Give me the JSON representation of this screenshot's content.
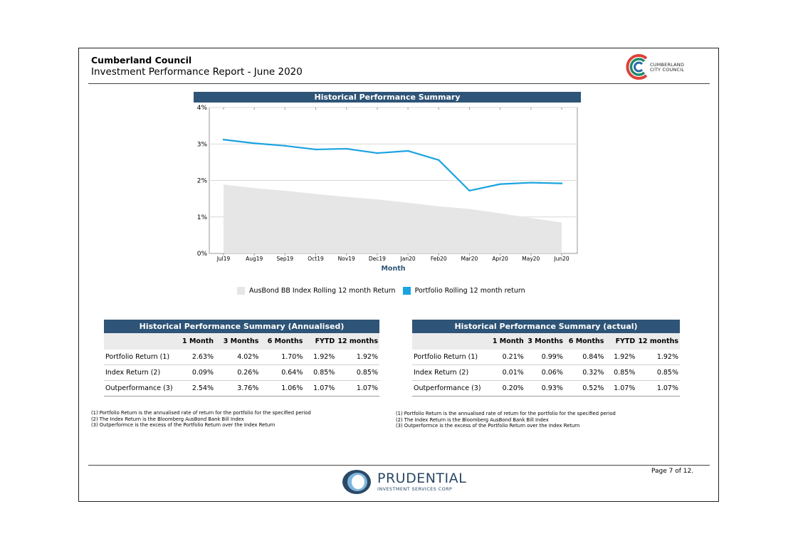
{
  "header": {
    "title": "Cumberland Council",
    "subtitle": "Investment Performance Report - June 2020",
    "council_logo_text_line1": "CUMBERLAND",
    "council_logo_text_line2": "CITY COUNCIL"
  },
  "chart_data": {
    "type": "area",
    "title": "Historical Performance Summary",
    "xlabel": "Month",
    "ylabel": "",
    "categories": [
      "Jul19",
      "Aug19",
      "Sep19",
      "Oct19",
      "Nov19",
      "Dec19",
      "Jan20",
      "Feb20",
      "Mar20",
      "Apr20",
      "May20",
      "Jun20"
    ],
    "y_ticks": [
      "0%",
      "1%",
      "2%",
      "3%",
      "4%"
    ],
    "ylim": [
      0,
      4
    ],
    "grid": true,
    "legend_position": "bottom",
    "series": [
      {
        "name": "AusBond BB Index Rolling 12 month Return",
        "type": "area",
        "color": "#e6e6e6",
        "values": [
          1.89,
          1.79,
          1.72,
          1.63,
          1.55,
          1.48,
          1.39,
          1.29,
          1.22,
          1.1,
          0.97,
          0.85
        ]
      },
      {
        "name": "Portfolio Rolling 12 month return",
        "type": "line",
        "color": "#1aa3e0",
        "values": [
          3.12,
          3.02,
          2.95,
          2.85,
          2.87,
          2.75,
          2.81,
          2.56,
          1.72,
          1.9,
          1.94,
          1.92
        ]
      }
    ]
  },
  "table_annualised": {
    "title": "Historical Performance Summary (Annualised)",
    "columns": [
      "",
      "1 Month",
      "3 Months",
      "6 Months",
      "FYTD",
      "12 months"
    ],
    "rows": [
      [
        "Portfolio Return (1)",
        "2.63%",
        "4.02%",
        "1.70%",
        "1.92%",
        "1.92%"
      ],
      [
        "Index Return (2)",
        "0.09%",
        "0.26%",
        "0.64%",
        "0.85%",
        "0.85%"
      ],
      [
        "Outperformance (3)",
        "2.54%",
        "3.76%",
        "1.06%",
        "1.07%",
        "1.07%"
      ]
    ],
    "notes": [
      "(1) Portfolio Return is the annualised rate of return for the portfolio for the specified period",
      "(2) The Index Return is the Bloomberg AusBond Bank Bill Index",
      "(3) Outperformce is the excess of the Portfolio Return over the Index Return"
    ]
  },
  "table_actual": {
    "title": "Historical Performance Summary (actual)",
    "columns": [
      "",
      "1 Month",
      "3 Months",
      "6 Months",
      "FYTD",
      "12 months"
    ],
    "rows": [
      [
        "Portfolio Return (1)",
        "0.21%",
        "0.99%",
        "0.84%",
        "1.92%",
        "1.92%"
      ],
      [
        "Index Return (2)",
        "0.01%",
        "0.06%",
        "0.32%",
        "0.85%",
        "0.85%"
      ],
      [
        "Outperformance (3)",
        "0.20%",
        "0.93%",
        "0.52%",
        "1.07%",
        "1.07%"
      ]
    ],
    "notes": [
      "(1) Portfolio Return is the annualised rate of return for the portfolio for the specified period",
      "(2) The Index Return is the Bloomberg AusBond Bank Bill Index",
      "(3) Outperformce is the excess of the Portfolio Return over the Index Return"
    ]
  },
  "footer": {
    "page_label": "Page 7 of 12.",
    "brand_name": "PRUDENTIAL",
    "brand_sub": "INVESTMENT SERVICES CORP"
  },
  "colors": {
    "header_bar": "#2e5477",
    "portfolio_line": "#1aa3e0",
    "index_area": "#e6e6e6"
  }
}
